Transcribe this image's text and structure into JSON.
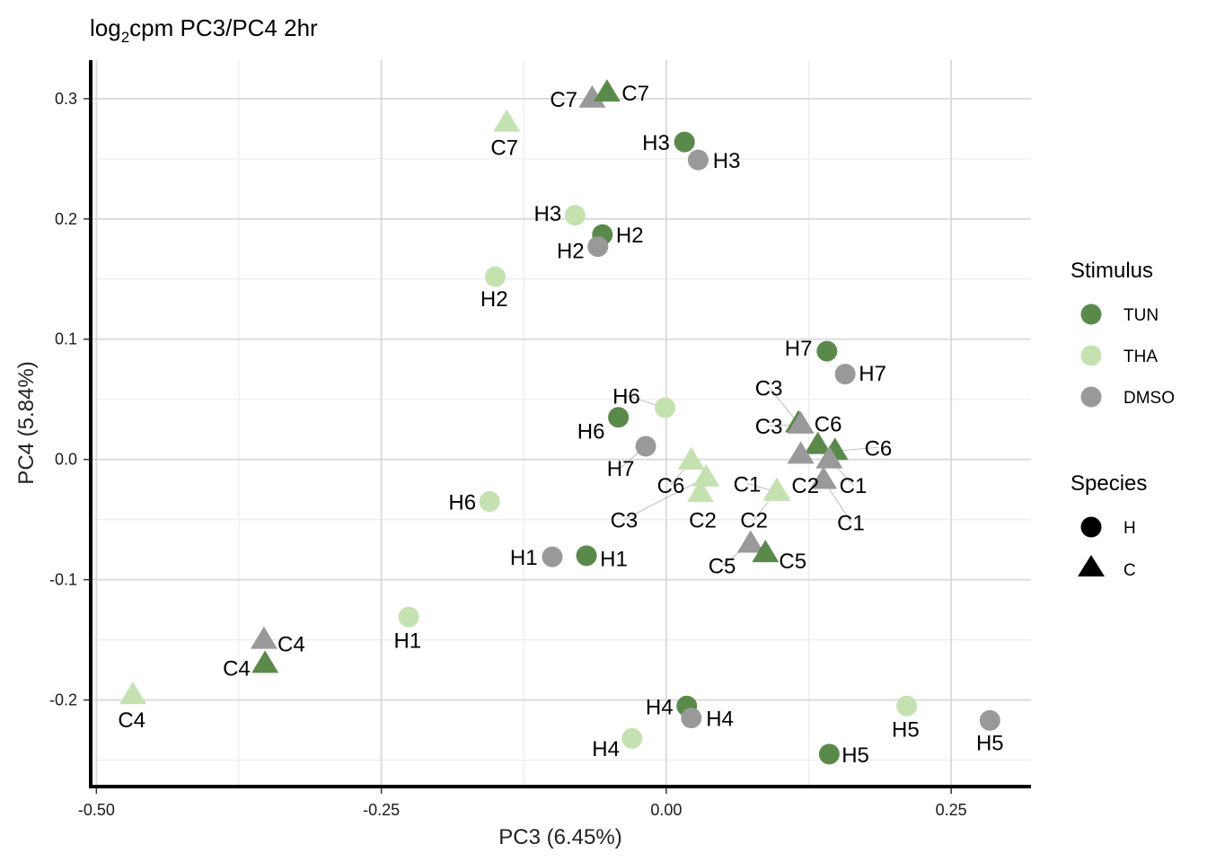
{
  "chart_data": {
    "type": "scatter",
    "title_main": "log",
    "title_sub": "2",
    "title_rest": "cpm PC3/PC4 2hr",
    "xlabel": "PC3 (6.45%)",
    "ylabel": "PC4 (5.84%)",
    "xlim": [
      -0.505,
      0.32
    ],
    "ylim": [
      -0.272,
      0.332
    ],
    "x_ticks": [
      -0.5,
      -0.25,
      0.0,
      0.25
    ],
    "x_tick_labels": [
      "-0.50",
      "-0.25",
      "0.00",
      "0.25"
    ],
    "y_ticks": [
      -0.2,
      -0.1,
      0.0,
      0.1,
      0.2,
      0.3
    ],
    "y_tick_labels": [
      "-0.2",
      "-0.1",
      "0.0",
      "0.1",
      "0.2",
      "0.3"
    ],
    "grid": true,
    "legend_placement": "right",
    "colors": {
      "TUN": "#5a8a4a",
      "THA": "#c4e2b0",
      "DMSO": "#999999"
    },
    "legend": {
      "stimulus_title": "Stimulus",
      "stimulus_items": [
        "TUN",
        "THA",
        "DMSO"
      ],
      "species_title": "Species",
      "species_items": [
        "H",
        "C"
      ]
    },
    "points": [
      {
        "label": "C7",
        "stim": "DMSO",
        "sp": "C",
        "x": -0.065,
        "y": 0.3,
        "lx": -0.09,
        "ly": 0.3
      },
      {
        "label": "C7",
        "stim": "TUN",
        "sp": "C",
        "x": -0.052,
        "y": 0.305,
        "lx": -0.027,
        "ly": 0.305
      },
      {
        "label": "C7",
        "stim": "THA",
        "sp": "C",
        "x": -0.14,
        "y": 0.28,
        "lx": -0.142,
        "ly": 0.26
      },
      {
        "label": "H3",
        "stim": "TUN",
        "sp": "H",
        "x": 0.016,
        "y": 0.264,
        "lx": -0.009,
        "ly": 0.264
      },
      {
        "label": "H3",
        "stim": "DMSO",
        "sp": "H",
        "x": 0.028,
        "y": 0.249,
        "lx": 0.053,
        "ly": 0.249
      },
      {
        "label": "H3",
        "stim": "THA",
        "sp": "H",
        "x": -0.08,
        "y": 0.203,
        "lx": -0.104,
        "ly": 0.205
      },
      {
        "label": "H2",
        "stim": "TUN",
        "sp": "H",
        "x": -0.056,
        "y": 0.187,
        "lx": -0.032,
        "ly": 0.187
      },
      {
        "label": "H2",
        "stim": "DMSO",
        "sp": "H",
        "x": -0.06,
        "y": 0.177,
        "lx": -0.084,
        "ly": 0.174
      },
      {
        "label": "H2",
        "stim": "THA",
        "sp": "H",
        "x": -0.15,
        "y": 0.152,
        "lx": -0.151,
        "ly": 0.134
      },
      {
        "label": "H7",
        "stim": "TUN",
        "sp": "H",
        "x": 0.141,
        "y": 0.09,
        "lx": 0.116,
        "ly": 0.093
      },
      {
        "label": "H7",
        "stim": "DMSO",
        "sp": "H",
        "x": 0.157,
        "y": 0.071,
        "lx": 0.181,
        "ly": 0.072
      },
      {
        "label": "H6",
        "stim": "THA",
        "sp": "H",
        "x": -0.001,
        "y": 0.043,
        "lx": -0.035,
        "ly": 0.053
      },
      {
        "label": "H6",
        "stim": "TUN",
        "sp": "H",
        "x": -0.042,
        "y": 0.035,
        "lx": -0.066,
        "ly": 0.024
      },
      {
        "label": "H7",
        "stim": "DMSO",
        "sp": "H",
        "x": -0.018,
        "y": 0.011,
        "lx": -0.04,
        "ly": -0.007
      },
      {
        "label": "H6",
        "stim": "THA",
        "sp": "H",
        "x": -0.155,
        "y": -0.035,
        "lx": -0.179,
        "ly": -0.035
      },
      {
        "label": "H1",
        "stim": "DMSO",
        "sp": "H",
        "x": -0.1,
        "y": -0.081,
        "lx": -0.125,
        "ly": -0.081
      },
      {
        "label": "H1",
        "stim": "TUN",
        "sp": "H",
        "x": -0.07,
        "y": -0.08,
        "lx": -0.046,
        "ly": -0.082
      },
      {
        "label": "H1",
        "stim": "THA",
        "sp": "H",
        "x": -0.226,
        "y": -0.131,
        "lx": -0.227,
        "ly": -0.15
      },
      {
        "label": "H4",
        "stim": "TUN",
        "sp": "H",
        "x": 0.018,
        "y": -0.205,
        "lx": -0.006,
        "ly": -0.205
      },
      {
        "label": "H4",
        "stim": "DMSO",
        "sp": "H",
        "x": 0.022,
        "y": -0.215,
        "lx": 0.047,
        "ly": -0.215
      },
      {
        "label": "H4",
        "stim": "THA",
        "sp": "H",
        "x": -0.03,
        "y": -0.232,
        "lx": -0.053,
        "ly": -0.24
      },
      {
        "label": "H5",
        "stim": "THA",
        "sp": "H",
        "x": 0.211,
        "y": -0.205,
        "lx": 0.21,
        "ly": -0.224
      },
      {
        "label": "H5",
        "stim": "DMSO",
        "sp": "H",
        "x": 0.284,
        "y": -0.217,
        "lx": 0.284,
        "ly": -0.235
      },
      {
        "label": "H5",
        "stim": "TUN",
        "sp": "H",
        "x": 0.143,
        "y": -0.245,
        "lx": 0.166,
        "ly": -0.245
      },
      {
        "label": "C3",
        "stim": "TUN",
        "sp": "C",
        "x": 0.116,
        "y": 0.03,
        "lx": 0.09,
        "ly": 0.06
      },
      {
        "label": "C3",
        "stim": "DMSO",
        "sp": "C",
        "x": 0.118,
        "y": 0.029,
        "lx": 0.09,
        "ly": 0.028
      },
      {
        "label": "C6",
        "stim": "TUN",
        "sp": "C",
        "x": 0.133,
        "y": 0.012,
        "lx": 0.142,
        "ly": 0.03
      },
      {
        "label": "C6",
        "stim": "TUN",
        "sp": "C",
        "x": 0.148,
        "y": 0.007,
        "lx": 0.186,
        "ly": 0.01
      },
      {
        "label": "C2",
        "stim": "DMSO",
        "sp": "C",
        "x": 0.118,
        "y": 0.004,
        "lx": 0.122,
        "ly": -0.021
      },
      {
        "label": "C1",
        "stim": "DMSO",
        "sp": "C",
        "x": 0.143,
        "y": 0.0,
        "lx": 0.164,
        "ly": -0.021
      },
      {
        "label": "C1",
        "stim": "DMSO",
        "sp": "C",
        "x": 0.138,
        "y": -0.017,
        "lx": 0.162,
        "ly": -0.052
      },
      {
        "label": "C6",
        "stim": "THA",
        "sp": "C",
        "x": 0.022,
        "y": -0.001,
        "lx": 0.004,
        "ly": -0.021
      },
      {
        "label": "C3",
        "stim": "THA",
        "sp": "C",
        "x": 0.035,
        "y": -0.015,
        "lx": -0.037,
        "ly": -0.05
      },
      {
        "label": "C2",
        "stim": "THA",
        "sp": "C",
        "x": 0.03,
        "y": -0.028,
        "lx": 0.032,
        "ly": -0.05
      },
      {
        "label": "C1",
        "stim": "THA",
        "sp": "C",
        "x": 0.097,
        "y": -0.027,
        "lx": 0.071,
        "ly": -0.02
      },
      {
        "label": "C2",
        "stim": "THA",
        "sp": "C",
        "x": 0.097,
        "y": -0.026,
        "lx": 0.077,
        "ly": -0.05
      },
      {
        "label": "C5",
        "stim": "DMSO",
        "sp": "C",
        "x": 0.074,
        "y": -0.07,
        "lx": 0.049,
        "ly": -0.088
      },
      {
        "label": "C5",
        "stim": "TUN",
        "sp": "C",
        "x": 0.087,
        "y": -0.078,
        "lx": 0.111,
        "ly": -0.084
      },
      {
        "label": "C4",
        "stim": "DMSO",
        "sp": "C",
        "x": -0.353,
        "y": -0.15,
        "lx": -0.329,
        "ly": -0.153
      },
      {
        "label": "C4",
        "stim": "TUN",
        "sp": "C",
        "x": -0.352,
        "y": -0.17,
        "lx": -0.377,
        "ly": -0.173
      },
      {
        "label": "C4",
        "stim": "THA",
        "sp": "C",
        "x": -0.468,
        "y": -0.196,
        "lx": -0.469,
        "ly": -0.216
      }
    ]
  }
}
